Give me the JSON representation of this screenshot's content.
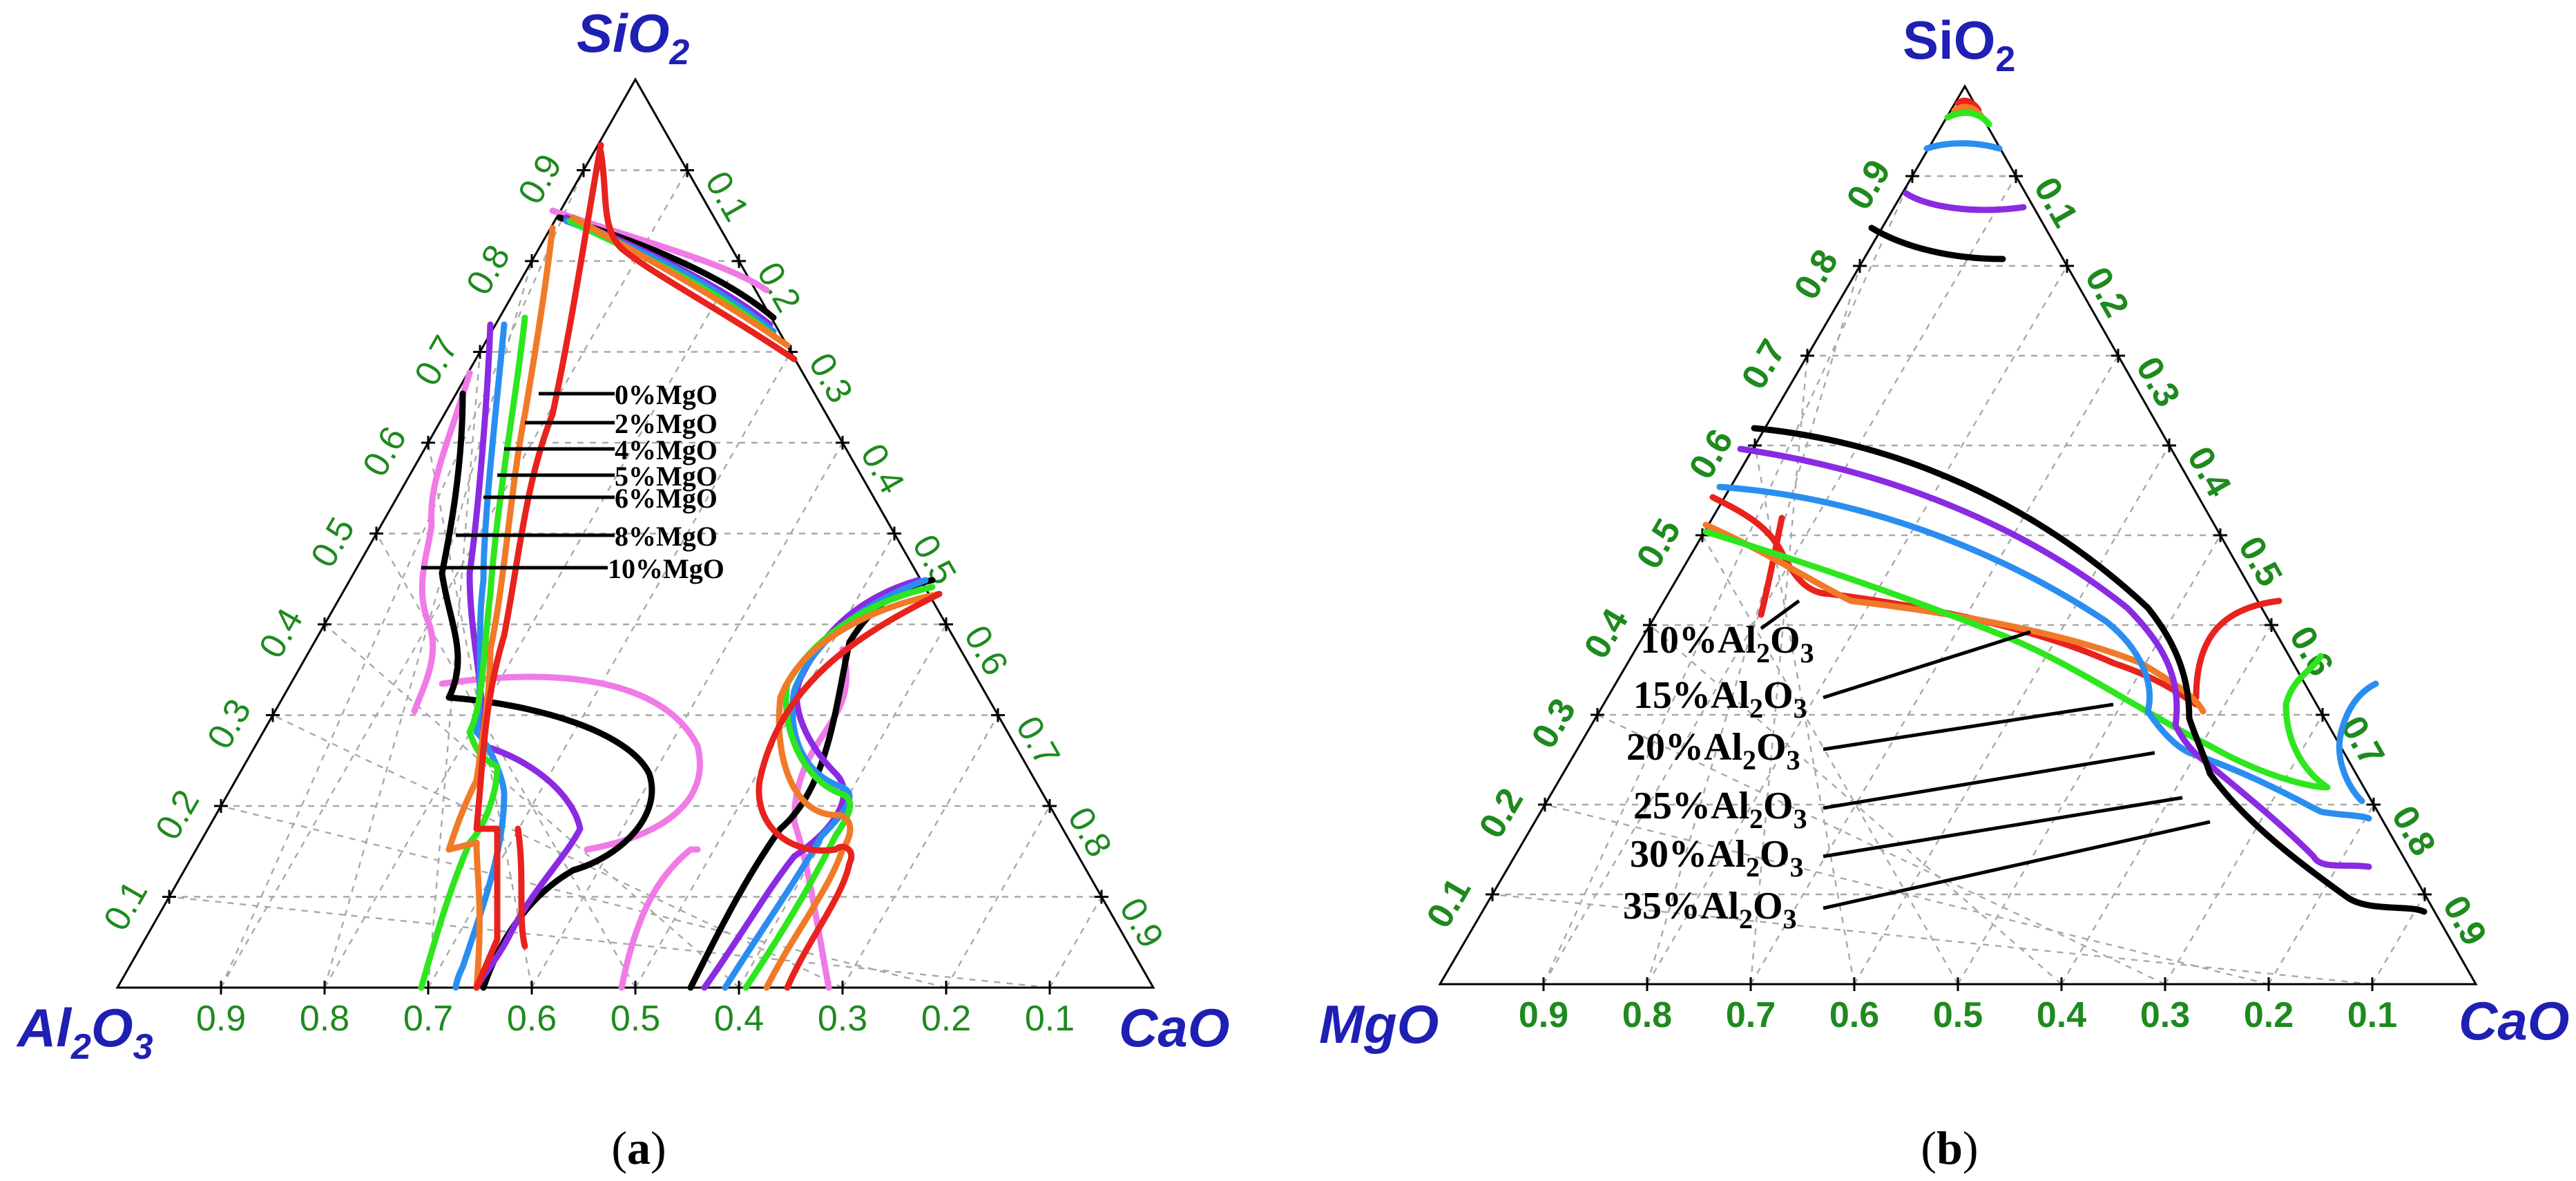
{
  "panel_a": {
    "vertices": {
      "top": "SiO",
      "top_sub": "2",
      "left": "Al",
      "left_sub1": "2",
      "left_mid": "O",
      "left_sub2": "3",
      "right": "CaO"
    },
    "ticks": [
      "0.1",
      "0.2",
      "0.3",
      "0.4",
      "0.5",
      "0.6",
      "0.7",
      "0.8",
      "0.9"
    ],
    "bottom_ticks": [
      "0.9",
      "0.8",
      "0.7",
      "0.6",
      "0.5",
      "0.4",
      "0.3",
      "0.2",
      "0.1"
    ],
    "legend": [
      "0%MgO",
      "2%MgO",
      "4%MgO",
      "5%MgO",
      "6%MgO",
      "8%MgO",
      "10%MgO"
    ],
    "caption_open": "(",
    "caption_letter": "a",
    "caption_close": ")"
  },
  "panel_b": {
    "vertices": {
      "top": "SiO",
      "top_sub": "2",
      "left": "MgO",
      "right": "CaO"
    },
    "ticks": [
      "0.1",
      "0.2",
      "0.3",
      "0.4",
      "0.5",
      "0.6",
      "0.7",
      "0.8",
      "0.9"
    ],
    "bottom_ticks": [
      "0.9",
      "0.8",
      "0.7",
      "0.6",
      "0.5",
      "0.4",
      "0.3",
      "0.2",
      "0.1"
    ],
    "legend": [
      {
        "pct": "10%",
        "a": "Al",
        "s1": "2",
        "o": "O",
        "s2": "3"
      },
      {
        "pct": "15%",
        "a": "Al",
        "s1": "2",
        "o": "O",
        "s2": "3"
      },
      {
        "pct": "20%",
        "a": "Al",
        "s1": "2",
        "o": "O",
        "s2": "3"
      },
      {
        "pct": "25%",
        "a": "Al",
        "s1": "2",
        "o": "O",
        "s2": "3"
      },
      {
        "pct": "30%",
        "a": "Al",
        "s1": "2",
        "o": "O",
        "s2": "3"
      },
      {
        "pct": "35%",
        "a": "Al",
        "s1": "2",
        "o": "O",
        "s2": "3"
      }
    ],
    "caption_open": "(",
    "caption_letter": "b",
    "caption_close": ")"
  },
  "colors": {
    "red": "#e8221c",
    "orange": "#f07a28",
    "green": "#2ee61e",
    "blue": "#2a8ef0",
    "violet": "#8a2be2",
    "black": "#000000",
    "pink": "#f07ae6",
    "tick_label": "#1e8a1e",
    "vertex_label": "#1f1fb4"
  }
}
